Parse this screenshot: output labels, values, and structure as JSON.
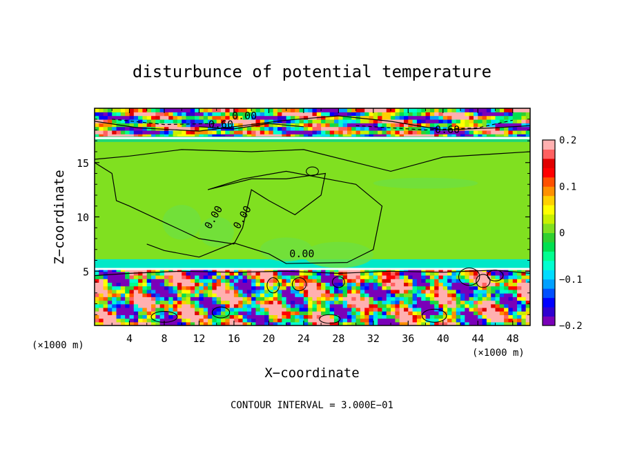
{
  "chart_data": {
    "type": "heatmap",
    "title": "disturbunce of potential temperature",
    "xlabel": "X−coordinate",
    "ylabel": "Z−coordinate",
    "x_unit_left": "(×1000 m)",
    "x_unit_right": "(×1000 m)",
    "xlim": [
      0,
      50
    ],
    "ylim": [
      0,
      20
    ],
    "x_ticks": [
      4,
      8,
      12,
      16,
      20,
      24,
      28,
      32,
      36,
      40,
      44,
      48
    ],
    "y_ticks": [
      5,
      10,
      15
    ],
    "colorbar": {
      "range": [
        -0.2,
        0.2
      ],
      "tick_values": [
        -0.2,
        -0.1,
        0,
        0.1,
        0.2
      ],
      "tick_labels": [
        "−0.2",
        "−0.1",
        "0",
        "0.1",
        "0.2"
      ],
      "colors": [
        "#7a00b8",
        "#3000d0",
        "#0000ff",
        "#0050ff",
        "#00a0ff",
        "#00dcff",
        "#00ffd0",
        "#00ff90",
        "#00e050",
        "#30d030",
        "#80e020",
        "#c8f000",
        "#ffff00",
        "#ffd000",
        "#ff9000",
        "#ff5000",
        "#ff0000",
        "#e00000",
        "#ff6060",
        "#ffb0b0"
      ]
    },
    "background_value": 0.0,
    "contour_labels": [
      {
        "text": "0.60",
        "x": 14.5,
        "z": 18.2
      },
      {
        "text": "0.00",
        "x": 17.2,
        "z": 19.0
      },
      {
        "text": "0.60",
        "x": 40.5,
        "z": 17.7
      },
      {
        "text": "0.00",
        "x": 14.0,
        "z": 9.8
      },
      {
        "text": "0.00",
        "x": 17.3,
        "z": 9.8
      },
      {
        "text": "0.00",
        "x": 23.8,
        "z": 6.3
      }
    ],
    "footer": "CONTOUR INTERVAL = 3.000E−01"
  }
}
